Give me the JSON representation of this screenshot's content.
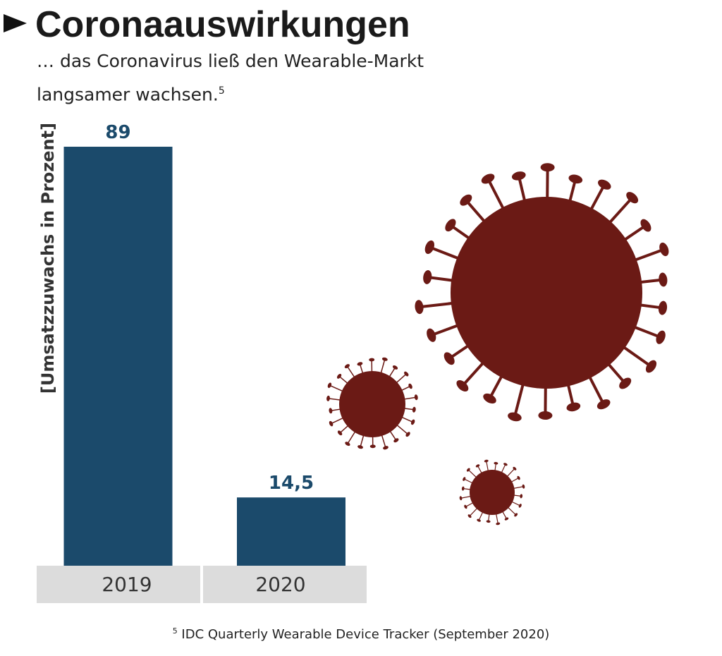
{
  "chart_data": {
    "type": "bar",
    "title": "Coronaauswirkungen",
    "subtitle": "… das Coronavirus ließ den Wearable-Markt langsamer wachsen.",
    "subtitle_note_ref": "5",
    "y_label": "[Umsatzzuwachs in Prozent]",
    "categories": [
      "2019",
      "2020"
    ],
    "values": [
      89,
      14.5
    ],
    "value_labels": [
      "89",
      "14,5"
    ],
    "color": "#1b4a6b",
    "footnote_ref": "5",
    "footnote": "IDC Quarterly Wearable Device Tracker (September 2020)"
  }
}
